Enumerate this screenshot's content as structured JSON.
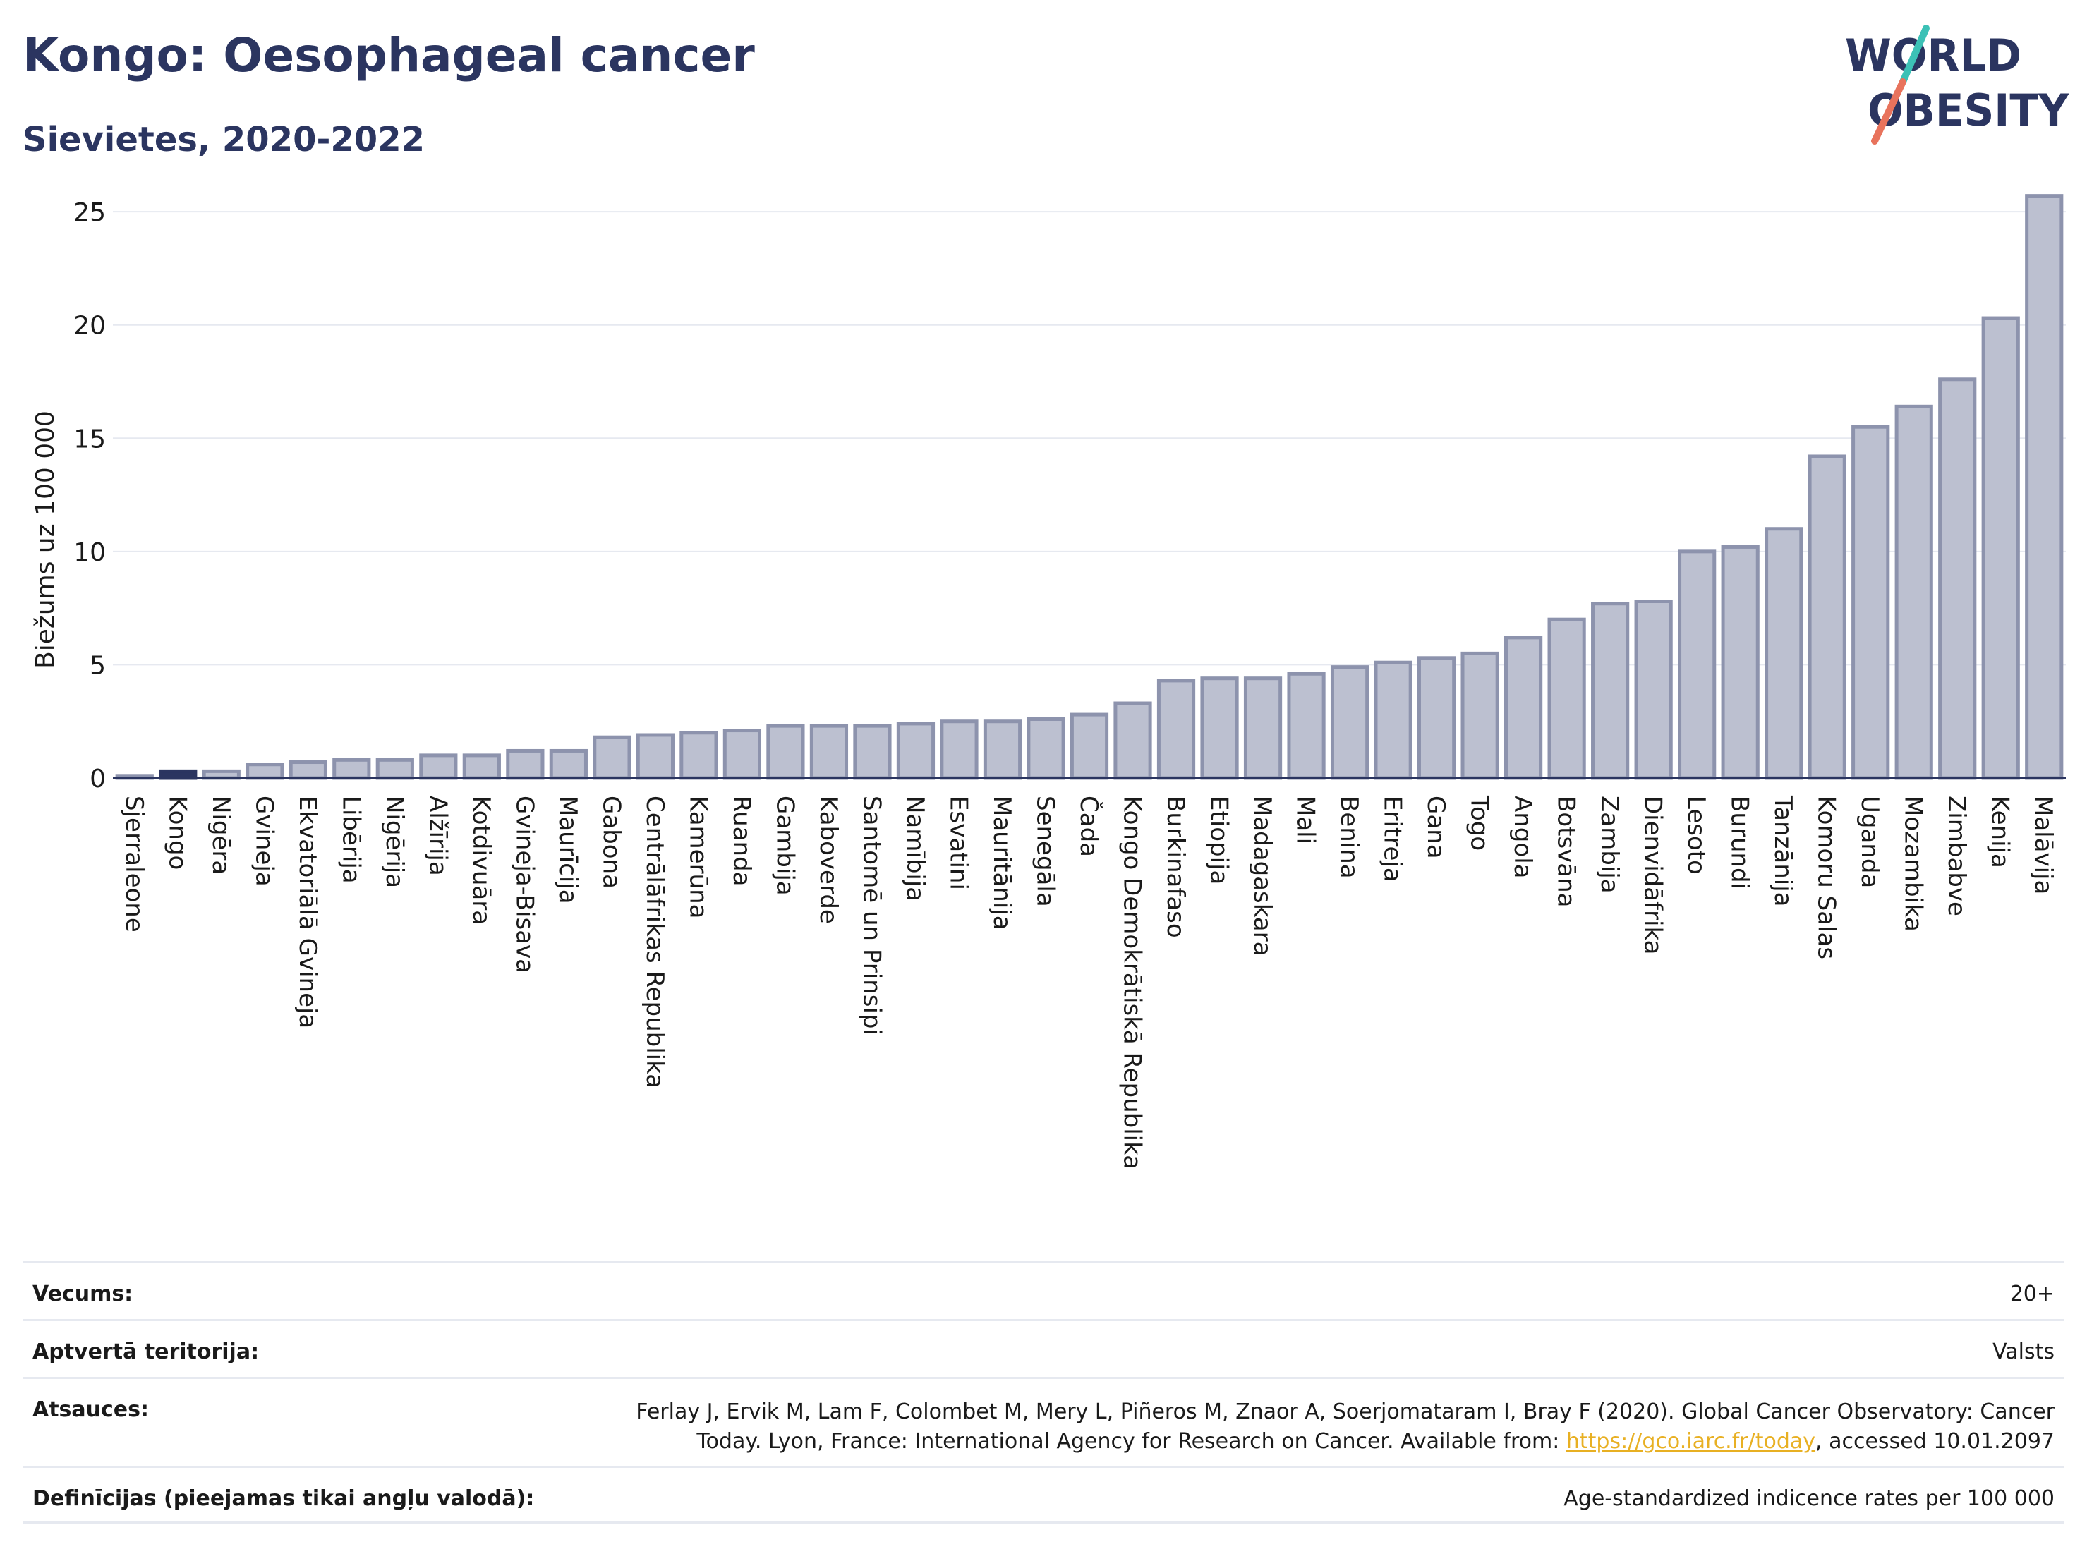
{
  "header": {
    "title": "Kongo: Oesophageal cancer",
    "subtitle": "Sievietes, 2020-2022"
  },
  "logo": {
    "line1": "WORLD",
    "line2": "OBESITY"
  },
  "colors": {
    "title": "#2b3560",
    "bar_fill": "#bcc0d0",
    "bar_stroke": "#8d93ad",
    "highlight_bar": "#2b3560",
    "axis": "#2b3560",
    "grid": "#e6e9f0",
    "logo_text": "#2b3560",
    "logo_slash_top": "#3cc1b6",
    "logo_slash_bottom": "#e8735c",
    "link": "#e8b023"
  },
  "chart_data": {
    "type": "bar",
    "ylabel": "Biežums uz 100 000",
    "xlabel": "",
    "ylim": [
      0,
      26
    ],
    "yticks": [
      0,
      5,
      10,
      15,
      20,
      25
    ],
    "grid": true,
    "highlight": "Kongo",
    "categories": [
      "Sjerraleone",
      "Kongo",
      "Nigēra",
      "Gvineja",
      "Ekvatoriālā Gvineja",
      "Libērija",
      "Nigērija",
      "Alžīrija",
      "Kotdivuāra",
      "Gvineja-Bisava",
      "Maurīcija",
      "Gabona",
      "Centrālāfrikas Republika",
      "Kamerūna",
      "Ruanda",
      "Gambija",
      "Kaboverde",
      "Santomē un Prinsipi",
      "Namībija",
      "Esvatini",
      "Mauritānija",
      "Senegāla",
      "Čada",
      "Kongo Demokrātiskā Republika",
      "Burkinafaso",
      "Etiopija",
      "Madagaskara",
      "Mali",
      "Benina",
      "Eritreja",
      "Gana",
      "Togo",
      "Angola",
      "Botsvāna",
      "Zambija",
      "Dienvidāfrika",
      "Lesoto",
      "Burundi",
      "Tanzānija",
      "Komoru Salas",
      "Uganda",
      "Mozambika",
      "Zimbabve",
      "Kenija",
      "Malāvija"
    ],
    "values": [
      0.1,
      0.3,
      0.3,
      0.6,
      0.7,
      0.8,
      0.8,
      1.0,
      1.0,
      1.2,
      1.2,
      1.8,
      1.9,
      2.0,
      2.1,
      2.3,
      2.3,
      2.3,
      2.4,
      2.5,
      2.5,
      2.6,
      2.8,
      3.3,
      4.3,
      4.4,
      4.4,
      4.6,
      4.9,
      5.1,
      5.3,
      5.5,
      6.2,
      7.0,
      7.7,
      7.8,
      10.0,
      10.2,
      11.0,
      14.2,
      15.5,
      16.4,
      17.6,
      20.3,
      25.7
    ]
  },
  "footer": {
    "age_label": "Vecums:",
    "age_value": "20+",
    "territory_label": "Aptvertā teritorija:",
    "territory_value": "Valsts",
    "refs_label": "Atsauces:",
    "refs_text_before": "Ferlay J, Ervik M, Lam F, Colombet M, Mery L, Piñeros M, Znaor A, Soerjomataram I, Bray F (2020). Global Cancer Observatory: Cancer Today. Lyon, France: International Agency for Research on Cancer. Available from: ",
    "refs_link": "https://gco.iarc.fr/today",
    "refs_text_after": ", accessed 10.01.2097",
    "defs_label": "Definīcijas (pieejamas tikai angļu valodā):",
    "defs_value": "Age-standardized indicence rates per 100 000"
  }
}
